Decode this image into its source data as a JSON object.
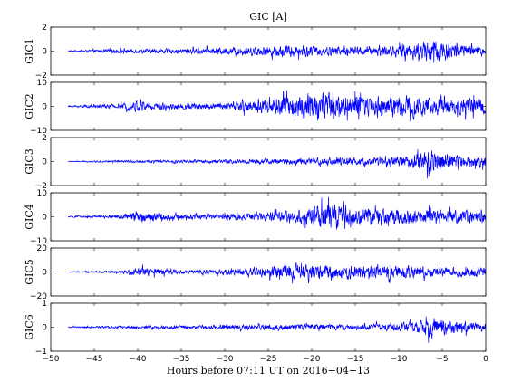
{
  "chart_data": {
    "type": "line",
    "title": "GIC [A]",
    "xlabel": "Hours before  07:11 UT on 2016−04−13",
    "xlim": [
      -50,
      0
    ],
    "data_x_range": [
      -48,
      0
    ],
    "x_ticks": [
      -50,
      -45,
      -40,
      -35,
      -30,
      -25,
      -20,
      -15,
      -10,
      -5,
      0
    ],
    "line_color": "#0000ff",
    "grid": false,
    "legend": "none",
    "series": [
      {
        "name": "GIC1",
        "ylabel": "GIC1",
        "ylim": [
          -2,
          2
        ],
        "yticks": [
          -2,
          0,
          2
        ],
        "envelope": [
          {
            "x": -48,
            "amp": 0.08
          },
          {
            "x": -42,
            "amp": 0.25
          },
          {
            "x": -35,
            "amp": 0.3
          },
          {
            "x": -30,
            "amp": 0.45
          },
          {
            "x": -27,
            "amp": 0.55
          },
          {
            "x": -22,
            "amp": 0.75
          },
          {
            "x": -19,
            "amp": 0.6
          },
          {
            "x": -14,
            "amp": 0.55
          },
          {
            "x": -10,
            "amp": 0.7
          },
          {
            "x": -7,
            "amp": 1.2
          },
          {
            "x": -6.5,
            "amp": 1.7
          },
          {
            "x": -4,
            "amp": 1.0
          },
          {
            "x": 0,
            "amp": 0.5
          }
        ]
      },
      {
        "name": "GIC2",
        "ylabel": "GIC2",
        "ylim": [
          -10,
          10
        ],
        "yticks": [
          -10,
          0,
          10
        ],
        "envelope": [
          {
            "x": -48,
            "amp": 0.5
          },
          {
            "x": -42,
            "amp": 1.5
          },
          {
            "x": -40,
            "amp": 3.5
          },
          {
            "x": -38,
            "amp": 2.0
          },
          {
            "x": -30,
            "amp": 2.0
          },
          {
            "x": -22,
            "amp": 7.0
          },
          {
            "x": -18.5,
            "amp": 9.0
          },
          {
            "x": -17,
            "amp": 7.0
          },
          {
            "x": -13,
            "amp": 6.5
          },
          {
            "x": -9,
            "amp": 7.0
          },
          {
            "x": -5,
            "amp": 5.0
          },
          {
            "x": -1,
            "amp": 5.5
          },
          {
            "x": 0,
            "amp": 4.0
          }
        ]
      },
      {
        "name": "GIC3",
        "ylabel": "GIC3",
        "ylim": [
          -2,
          2
        ],
        "yticks": [
          -2,
          0,
          2
        ],
        "envelope": [
          {
            "x": -48,
            "amp": 0.05
          },
          {
            "x": -40,
            "amp": 0.15
          },
          {
            "x": -32,
            "amp": 0.2
          },
          {
            "x": -25,
            "amp": 0.35
          },
          {
            "x": -17,
            "amp": 0.45
          },
          {
            "x": -12,
            "amp": 0.4
          },
          {
            "x": -9,
            "amp": 0.7
          },
          {
            "x": -7,
            "amp": 1.2
          },
          {
            "x": -6.5,
            "amp": 1.6
          },
          {
            "x": -4,
            "amp": 0.9
          },
          {
            "x": 0,
            "amp": 0.6
          }
        ]
      },
      {
        "name": "GIC4",
        "ylabel": "GIC4",
        "ylim": [
          -10,
          10
        ],
        "yticks": [
          -10,
          0,
          10
        ],
        "envelope": [
          {
            "x": -48,
            "amp": 0.4
          },
          {
            "x": -42,
            "amp": 1.0
          },
          {
            "x": -40,
            "amp": 3.5
          },
          {
            "x": -35,
            "amp": 1.5
          },
          {
            "x": -30,
            "amp": 1.8
          },
          {
            "x": -22,
            "amp": 3.5
          },
          {
            "x": -17.5,
            "amp": 9.0
          },
          {
            "x": -16,
            "amp": 5.0
          },
          {
            "x": -10,
            "amp": 4.5
          },
          {
            "x": -5,
            "amp": 4.0
          },
          {
            "x": -1,
            "amp": 4.0
          },
          {
            "x": 0,
            "amp": 3.0
          }
        ]
      },
      {
        "name": "GIC5",
        "ylabel": "GIC5",
        "ylim": [
          -20,
          20
        ],
        "yticks": [
          -20,
          0,
          20
        ],
        "envelope": [
          {
            "x": -48,
            "amp": 0.6
          },
          {
            "x": -42,
            "amp": 1.5
          },
          {
            "x": -40,
            "amp": 6.0
          },
          {
            "x": -35,
            "amp": 2.5
          },
          {
            "x": -30,
            "amp": 3.0
          },
          {
            "x": -22,
            "amp": 10.0
          },
          {
            "x": -17,
            "amp": 9.0
          },
          {
            "x": -13,
            "amp": 7.5
          },
          {
            "x": -9,
            "amp": 8.0
          },
          {
            "x": -5,
            "amp": 5.0
          },
          {
            "x": -1,
            "amp": 7.0
          },
          {
            "x": 0,
            "amp": 5.0
          }
        ]
      },
      {
        "name": "GIC6",
        "ylabel": "GIC6",
        "ylim": [
          -1,
          1
        ],
        "yticks": [
          -1,
          0,
          1
        ],
        "envelope": [
          {
            "x": -48,
            "amp": 0.04
          },
          {
            "x": -42,
            "amp": 0.08
          },
          {
            "x": -35,
            "amp": 0.1
          },
          {
            "x": -30,
            "amp": 0.15
          },
          {
            "x": -22,
            "amp": 0.2
          },
          {
            "x": -15,
            "amp": 0.15
          },
          {
            "x": -10,
            "amp": 0.25
          },
          {
            "x": -7,
            "amp": 0.45
          },
          {
            "x": -6.5,
            "amp": 0.6
          },
          {
            "x": -4,
            "amp": 0.4
          },
          {
            "x": 0,
            "amp": 0.25
          }
        ]
      }
    ]
  }
}
